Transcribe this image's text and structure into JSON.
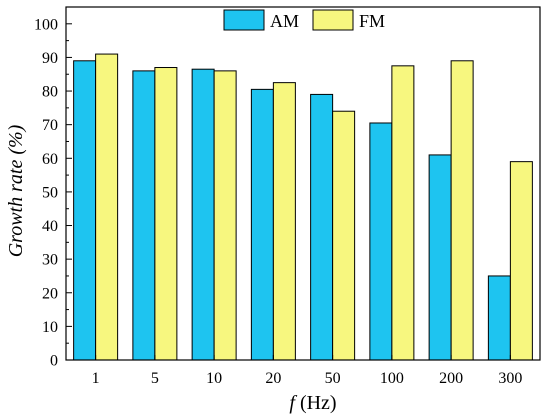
{
  "chart_data": {
    "type": "bar",
    "categories": [
      "1",
      "5",
      "10",
      "20",
      "50",
      "100",
      "200",
      "300"
    ],
    "series": [
      {
        "name": "AM",
        "color": "#1ec4f0",
        "values": [
          89,
          86,
          86.5,
          80.5,
          79,
          70.5,
          61,
          25
        ]
      },
      {
        "name": "FM",
        "color": "#f7f77f",
        "values": [
          91,
          87,
          86,
          82.5,
          74,
          87.5,
          89,
          59
        ]
      }
    ],
    "ylim": [
      0,
      105
    ],
    "yticks": [
      0,
      10,
      20,
      30,
      40,
      50,
      60,
      70,
      80,
      90,
      100
    ],
    "xlabel_italic": "f",
    "xlabel_unit": " (Hz)",
    "ylabel": "Growth rate (%)",
    "legend_position": "top-center",
    "grid": false
  }
}
